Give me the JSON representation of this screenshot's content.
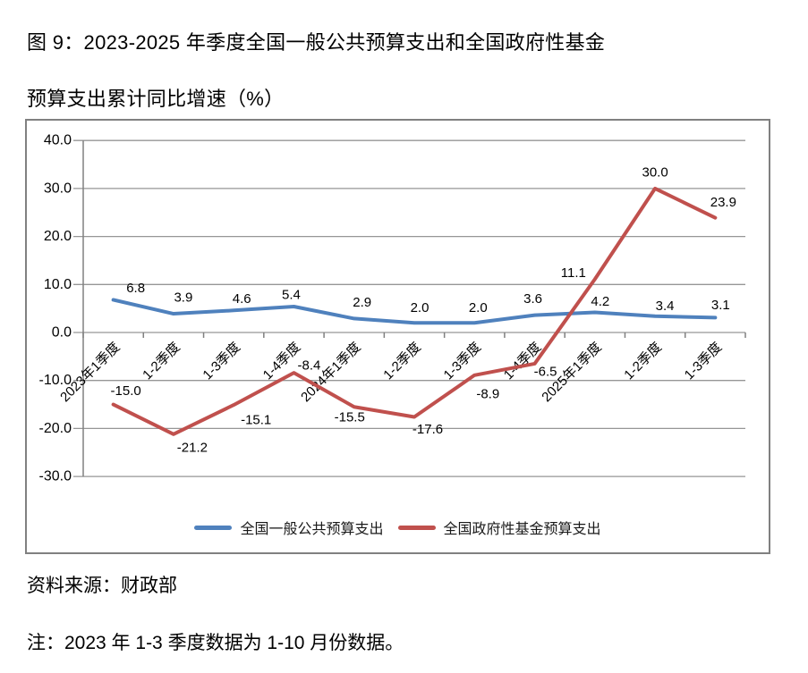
{
  "figure": {
    "title_line1": "图 9：2023-2025 年季度全国一般公共预算支出和全国政府性基金",
    "title_line2": "预算支出累计同比增速（%）",
    "source": "资料来源：财政部",
    "note": "注：2023 年 1-3 季度数据为 1-10 月份数据。"
  },
  "chart_data": {
    "type": "line",
    "title": "2023-2025 年季度全国一般公共预算支出和全国政府性基金预算支出累计同比增速（%）",
    "categories": [
      "2023年1季度",
      "1-2季度",
      "1-3季度",
      "1-4季度",
      "2024年1季度",
      "1-2季度",
      "1-3季度",
      "1-4季度",
      "2025年1季度",
      "1-2季度",
      "1-3季度"
    ],
    "series": [
      {
        "name": "全国一般公共预算支出",
        "color": "#4F81BD",
        "values": [
          6.8,
          3.9,
          4.6,
          5.4,
          2.9,
          2.0,
          2.0,
          3.6,
          4.2,
          3.4,
          3.1
        ],
        "label_offsets": [
          [
            25,
            -13
          ],
          [
            11,
            -18
          ],
          [
            9,
            -13
          ],
          [
            -3,
            -13
          ],
          [
            9,
            -18
          ],
          [
            6,
            -17
          ],
          [
            4,
            -17
          ],
          [
            -2,
            -18
          ],
          [
            6,
            -12
          ],
          [
            11,
            -11
          ],
          [
            6,
            -14
          ]
        ]
      },
      {
        "name": "全国政府性基金预算支出",
        "color": "#C0504D",
        "values": [
          -15.0,
          -21.2,
          -15.1,
          -8.4,
          -15.5,
          -17.6,
          -8.9,
          -6.5,
          11.1,
          30.0,
          23.9
        ],
        "label_offsets": [
          [
            14,
            -15
          ],
          [
            21,
            15
          ],
          [
            25,
            17
          ],
          [
            17,
            -8
          ],
          [
            -5,
            12
          ],
          [
            15,
            14
          ],
          [
            15,
            21
          ],
          [
            12,
            9
          ],
          [
            -24,
            -7
          ],
          [
            0,
            -18
          ],
          [
            9,
            -17
          ]
        ]
      }
    ],
    "ylim": [
      -30,
      40
    ],
    "ytick_step": 10,
    "ytick_labels": [
      "40.0",
      "30.0",
      "20.0",
      "10.0",
      "0.0",
      "-10.0",
      "-20.0",
      "-30.0"
    ],
    "grid": "on",
    "legend_position": "bottom",
    "grid_color": "#969696",
    "axis_color": "#808080",
    "value_format_decimals": 1
  }
}
